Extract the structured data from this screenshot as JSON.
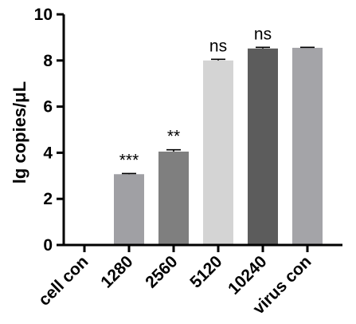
{
  "chart_data": {
    "type": "bar",
    "categories": [
      "cell con",
      "1280",
      "2560",
      "5120",
      "10240",
      "virus con"
    ],
    "values": [
      0,
      3.07,
      4.05,
      8.0,
      8.52,
      8.55
    ],
    "errors": [
      0,
      0.03,
      0.08,
      0.05,
      0.05,
      0.02
    ],
    "colors": [
      "#a0a0a4",
      "#a0a0a4",
      "#7f7f7f",
      "#d4d4d4",
      "#5c5c5c",
      "#a4a4a8"
    ],
    "annotations": [
      "",
      "***",
      "**",
      "ns",
      "ns",
      ""
    ],
    "title": "",
    "xlabel": "",
    "ylabel": "lg copies/μL",
    "ylim": [
      0,
      10
    ],
    "yticks": [
      0,
      2,
      4,
      6,
      8,
      10
    ],
    "grid": false
  }
}
